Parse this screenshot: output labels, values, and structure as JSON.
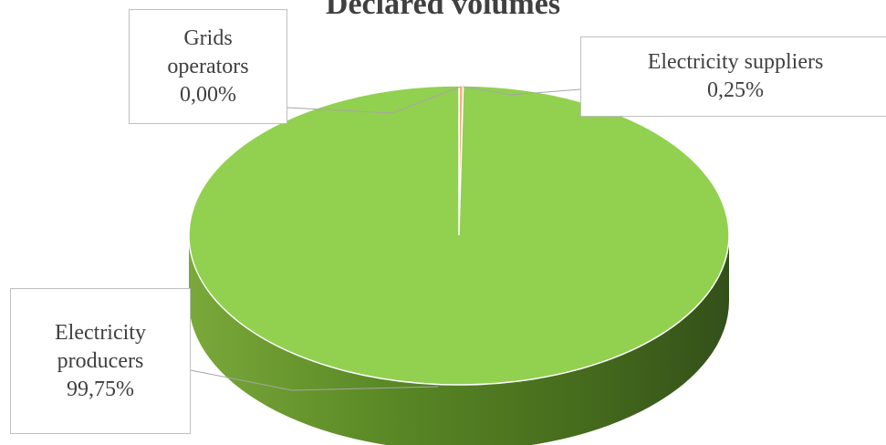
{
  "chart_data": {
    "type": "pie",
    "style": "3d",
    "title": "Declared volumes",
    "slices": [
      {
        "label_lines": [
          "Electricity",
          "producers"
        ],
        "value_label": "99,75%",
        "value": 99.75,
        "color": "#92d050"
      },
      {
        "label_lines": [
          "Electricity suppliers"
        ],
        "value_label": "0,25%",
        "value": 0.25,
        "color": "#f4b183"
      },
      {
        "label_lines": [
          "Grids",
          "operators"
        ],
        "value_label": "0,00%",
        "value": 0.0,
        "color": "#c0504d"
      }
    ]
  }
}
